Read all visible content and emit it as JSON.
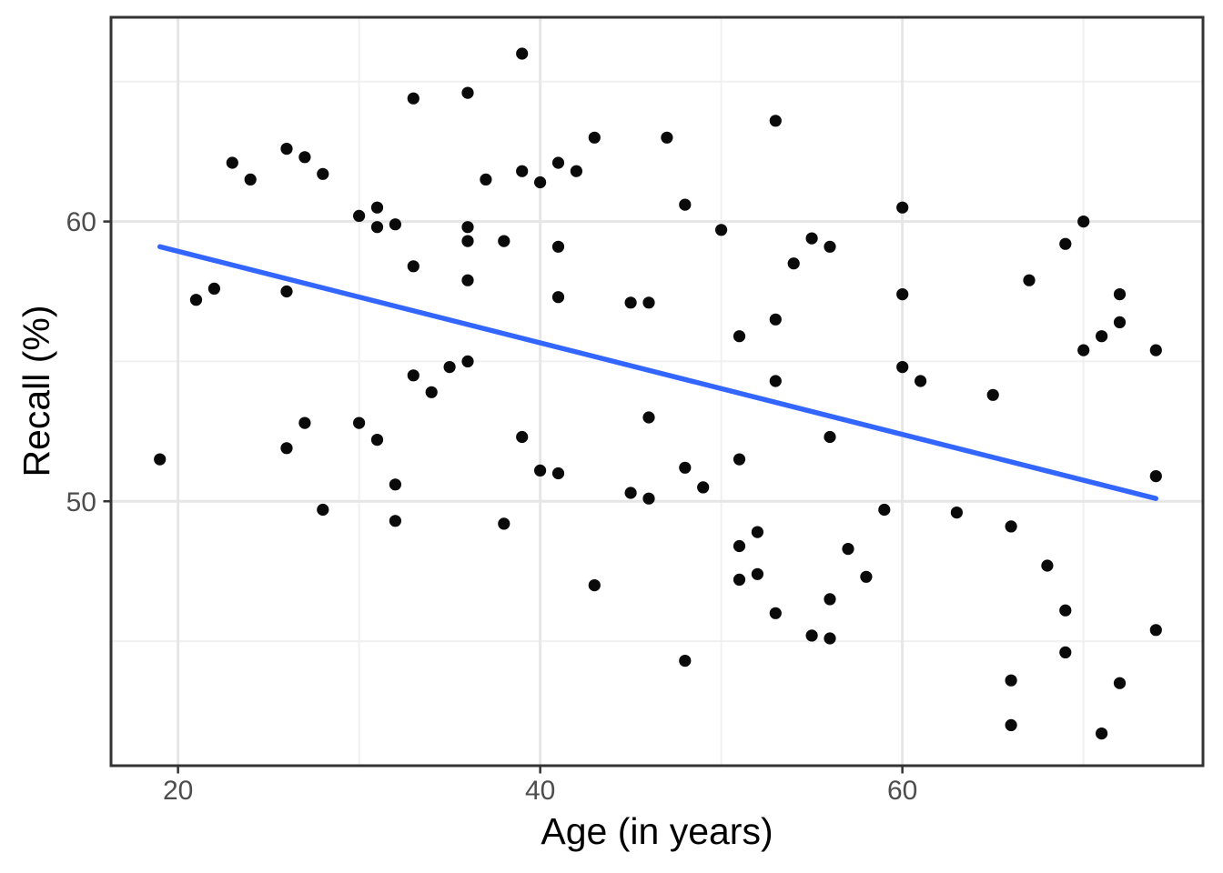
{
  "chart_data": {
    "type": "scatter",
    "title": "",
    "xlabel": "Age (in years)",
    "ylabel": "Recall (%)",
    "xlim": [
      16.3,
      76.6
    ],
    "ylim": [
      40.55,
      67.3
    ],
    "x_ticks": [
      20,
      40,
      60
    ],
    "x_minor_breaks": [
      30,
      50,
      70
    ],
    "y_ticks": [
      50,
      60
    ],
    "y_minor_breaks": [
      45,
      55,
      65
    ],
    "grid": "major-and-minor",
    "legend_position": "none",
    "points": [
      [
        19,
        51.5
      ],
      [
        21,
        57.2
      ],
      [
        22,
        57.6
      ],
      [
        23,
        62.1
      ],
      [
        24,
        61.5
      ],
      [
        26,
        62.6
      ],
      [
        26,
        57.5
      ],
      [
        26,
        51.9
      ],
      [
        27,
        62.3
      ],
      [
        27,
        52.8
      ],
      [
        28,
        61.7
      ],
      [
        28,
        49.7
      ],
      [
        30,
        60.2
      ],
      [
        30,
        52.8
      ],
      [
        31,
        60.5
      ],
      [
        31,
        59.8
      ],
      [
        31,
        52.2
      ],
      [
        32,
        59.9
      ],
      [
        32,
        50.6
      ],
      [
        32,
        49.3
      ],
      [
        33,
        64.4
      ],
      [
        33,
        58.4
      ],
      [
        33,
        54.5
      ],
      [
        34,
        53.9
      ],
      [
        35,
        54.8
      ],
      [
        36,
        64.6
      ],
      [
        36,
        59.8
      ],
      [
        36,
        59.3
      ],
      [
        36,
        57.9
      ],
      [
        36,
        55.0
      ],
      [
        37,
        61.5
      ],
      [
        38,
        59.3
      ],
      [
        38,
        49.2
      ],
      [
        39,
        66.0
      ],
      [
        39,
        61.8
      ],
      [
        39,
        52.3
      ],
      [
        40,
        61.4
      ],
      [
        40,
        51.1
      ],
      [
        41,
        62.1
      ],
      [
        41,
        59.1
      ],
      [
        41,
        57.3
      ],
      [
        41,
        51.0
      ],
      [
        42,
        61.8
      ],
      [
        43,
        63.0
      ],
      [
        43,
        47.0
      ],
      [
        45,
        57.1
      ],
      [
        45,
        50.3
      ],
      [
        46,
        57.1
      ],
      [
        46,
        53.0
      ],
      [
        46,
        50.1
      ],
      [
        47,
        63.0
      ],
      [
        48,
        60.6
      ],
      [
        48,
        51.2
      ],
      [
        48,
        44.3
      ],
      [
        49,
        50.5
      ],
      [
        50,
        59.7
      ],
      [
        51,
        55.9
      ],
      [
        51,
        51.5
      ],
      [
        51,
        48.4
      ],
      [
        51,
        47.2
      ],
      [
        52,
        48.9
      ],
      [
        52,
        47.4
      ],
      [
        53,
        63.6
      ],
      [
        53,
        56.5
      ],
      [
        53,
        54.3
      ],
      [
        53,
        46.0
      ],
      [
        54,
        58.5
      ],
      [
        55,
        59.4
      ],
      [
        55,
        45.2
      ],
      [
        56,
        59.1
      ],
      [
        56,
        52.3
      ],
      [
        56,
        46.5
      ],
      [
        56,
        45.1
      ],
      [
        57,
        48.3
      ],
      [
        58,
        47.3
      ],
      [
        59,
        49.7
      ],
      [
        60,
        60.5
      ],
      [
        60,
        57.4
      ],
      [
        60,
        54.8
      ],
      [
        61,
        54.3
      ],
      [
        63,
        49.6
      ],
      [
        65,
        53.8
      ],
      [
        66,
        49.1
      ],
      [
        66,
        43.6
      ],
      [
        66,
        42.0
      ],
      [
        67,
        57.9
      ],
      [
        68,
        47.7
      ],
      [
        69,
        59.2
      ],
      [
        69,
        46.1
      ],
      [
        69,
        44.6
      ],
      [
        70,
        60.0
      ],
      [
        70,
        55.4
      ],
      [
        71,
        55.9
      ],
      [
        71,
        41.7
      ],
      [
        72,
        57.4
      ],
      [
        72,
        56.4
      ],
      [
        72,
        43.5
      ],
      [
        74,
        55.4
      ],
      [
        74,
        50.9
      ],
      [
        74,
        45.4
      ]
    ],
    "trend_line": {
      "type": "linear",
      "x_start": 19,
      "y_start": 59.1,
      "x_end": 74,
      "y_end": 50.1
    }
  },
  "colors": {
    "point": "#0a0a0a",
    "trend_line": "#3366FF",
    "grid_major": "#e6e6e6",
    "grid_minor": "#f0f0f0",
    "panel_border": "#333333",
    "tick_mark": "#333333",
    "tick_label": "#4d4d4d",
    "axis_title": "#000000",
    "panel_background": "#ffffff",
    "figure_background": "#ffffff"
  }
}
